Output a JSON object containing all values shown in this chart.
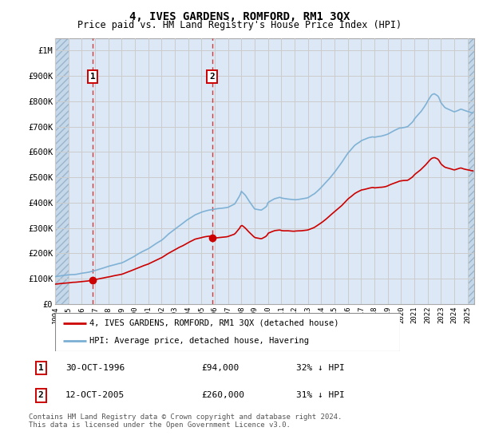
{
  "title": "4, IVES GARDENS, ROMFORD, RM1 3QX",
  "subtitle": "Price paid vs. HM Land Registry's House Price Index (HPI)",
  "ylim": [
    0,
    1050000
  ],
  "yticks": [
    0,
    100000,
    200000,
    300000,
    400000,
    500000,
    600000,
    700000,
    800000,
    900000,
    1000000
  ],
  "ytick_labels": [
    "£0",
    "£100K",
    "£200K",
    "£300K",
    "£400K",
    "£500K",
    "£600K",
    "£700K",
    "£800K",
    "£900K",
    "£1M"
  ],
  "xlim_start": 1994.0,
  "xlim_end": 2025.5,
  "hpi_color": "#7bafd4",
  "price_color": "#cc0000",
  "sale1_year": 1996.83,
  "sale1_price": 94000,
  "sale2_year": 2005.79,
  "sale2_price": 260000,
  "legend_line1": "4, IVES GARDENS, ROMFORD, RM1 3QX (detached house)",
  "legend_line2": "HPI: Average price, detached house, Havering",
  "annotation1_label": "1",
  "annotation2_label": "2",
  "table_row1": [
    "1",
    "30-OCT-1996",
    "£94,000",
    "32% ↓ HPI"
  ],
  "table_row2": [
    "2",
    "12-OCT-2005",
    "£260,000",
    "31% ↓ HPI"
  ],
  "footer": "Contains HM Land Registry data © Crown copyright and database right 2024.\nThis data is licensed under the Open Government Licence v3.0.",
  "grid_color": "#cccccc",
  "plot_bg": "#dce8f5"
}
